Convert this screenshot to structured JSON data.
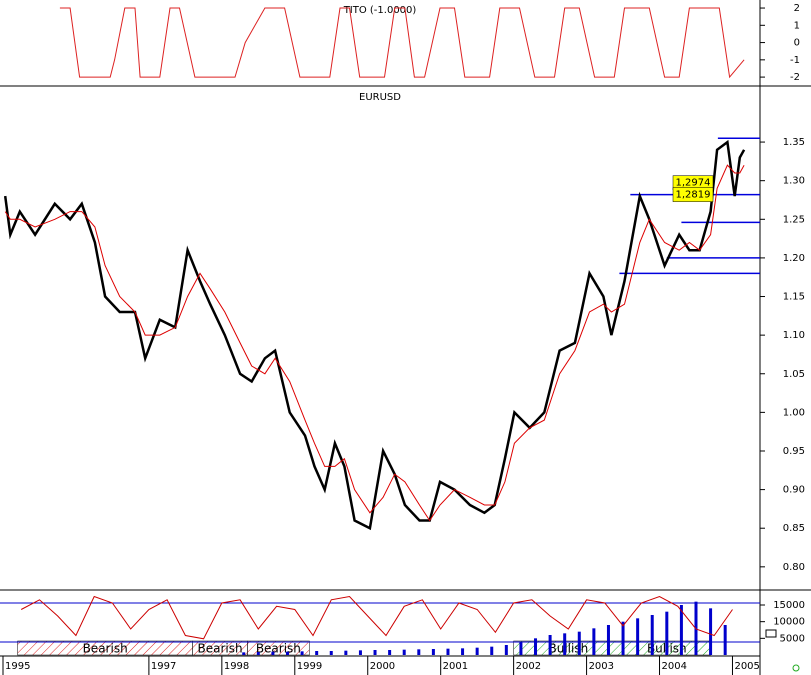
{
  "chart_data": [
    {
      "type": "line",
      "title": "TITO (-1.0000)",
      "xlim": [
        1995,
        2005.35
      ],
      "ylim": [
        -2.4,
        2.35
      ],
      "yticks": [
        -2,
        -1,
        0,
        1,
        2
      ],
      "x": [
        1995.78,
        1995.92,
        1996.05,
        1996.47,
        1996.53,
        1996.67,
        1996.81,
        1996.88,
        1997.15,
        1997.29,
        1997.42,
        1997.63,
        1998.18,
        1998.32,
        1998.59,
        1998.86,
        1999.07,
        1999.48,
        1999.62,
        1999.75,
        1999.89,
        2000.23,
        2000.37,
        2000.51,
        2000.64,
        2000.78,
        2000.99,
        2001.19,
        2001.33,
        2001.67,
        2001.81,
        2002.08,
        2002.29,
        2002.56,
        2002.7,
        2002.9,
        2003.11,
        2003.38,
        2003.52,
        2003.86,
        2004.07,
        2004.27,
        2004.41,
        2004.82,
        2004.96,
        2005.16
      ],
      "series": [
        {
          "color": "#dd2222",
          "values": [
            2,
            2,
            -2,
            -2,
            -1,
            2,
            2,
            -2,
            -2,
            2,
            2,
            -2,
            -2,
            0,
            2,
            2,
            -2,
            -2,
            2,
            2,
            -2,
            -2,
            2,
            2,
            -2,
            -2,
            2,
            2,
            -2,
            -2,
            2,
            2,
            -2,
            -2,
            2,
            2,
            -2,
            -2,
            2,
            2,
            -2,
            -2,
            2,
            2,
            -2,
            -1
          ]
        }
      ]
    },
    {
      "type": "line",
      "title": "EURUSD",
      "xlim": [
        1995,
        2005.35
      ],
      "ylim": [
        0.77,
        1.42
      ],
      "yticks": [
        {
          "value": 0.8,
          "label": "0.80"
        },
        0.85,
        {
          "value": 0.9,
          "label": "0.90"
        },
        0.95,
        {
          "value": 1.0,
          "label": "1.00"
        },
        1.05,
        {
          "value": 1.1,
          "label": "1.10"
        },
        1.15,
        {
          "value": 1.2,
          "label": "1.20"
        },
        1.25,
        {
          "value": 1.3,
          "label": "1.30"
        },
        1.35
      ],
      "x": [
        1995.03,
        1995.1,
        1995.23,
        1995.44,
        1995.71,
        1995.92,
        1996.08,
        1996.26,
        1996.4,
        1996.6,
        1996.81,
        1996.95,
        1997.15,
        1997.36,
        1997.53,
        1997.7,
        1997.84,
        1998.04,
        1998.25,
        1998.41,
        1998.59,
        1998.73,
        1998.93,
        1999.14,
        1999.27,
        1999.41,
        1999.55,
        1999.68,
        1999.82,
        2000.03,
        2000.21,
        2000.37,
        2000.51,
        2000.71,
        2000.85,
        2000.99,
        2001.19,
        2001.4,
        2001.6,
        2001.74,
        2001.88,
        2002.01,
        2002.22,
        2002.42,
        2002.63,
        2002.84,
        2003.04,
        2003.23,
        2003.34,
        2003.52,
        2003.73,
        2003.86,
        2004.07,
        2004.27,
        2004.41,
        2004.55,
        2004.7,
        2004.79,
        2004.93,
        2005.03,
        2005.1,
        2005.16
      ],
      "series": [
        {
          "color": "#000000",
          "values": [
            1.28,
            1.23,
            1.26,
            1.23,
            1.27,
            1.25,
            1.27,
            1.22,
            1.15,
            1.13,
            1.13,
            1.07,
            1.12,
            1.11,
            1.21,
            1.17,
            1.14,
            1.1,
            1.05,
            1.04,
            1.07,
            1.08,
            1.0,
            0.97,
            0.93,
            0.9,
            0.96,
            0.93,
            0.86,
            0.85,
            0.95,
            0.92,
            0.88,
            0.86,
            0.86,
            0.91,
            0.9,
            0.88,
            0.87,
            0.88,
            0.94,
            1.0,
            0.98,
            1.0,
            1.08,
            1.09,
            1.18,
            1.15,
            1.1,
            1.17,
            1.28,
            1.25,
            1.19,
            1.23,
            1.21,
            1.21,
            1.26,
            1.34,
            1.35,
            1.28,
            1.33,
            1.34
          ]
        },
        {
          "color": "#dd0000",
          "values": [
            1.26,
            1.25,
            1.25,
            1.24,
            1.25,
            1.26,
            1.26,
            1.24,
            1.19,
            1.15,
            1.13,
            1.1,
            1.1,
            1.11,
            1.15,
            1.18,
            1.16,
            1.13,
            1.09,
            1.06,
            1.05,
            1.07,
            1.04,
            0.99,
            0.96,
            0.93,
            0.93,
            0.94,
            0.9,
            0.87,
            0.89,
            0.92,
            0.91,
            0.88,
            0.86,
            0.88,
            0.9,
            0.89,
            0.88,
            0.88,
            0.91,
            0.96,
            0.98,
            0.99,
            1.05,
            1.08,
            1.13,
            1.14,
            1.13,
            1.14,
            1.22,
            1.25,
            1.22,
            1.21,
            1.22,
            1.21,
            1.23,
            1.29,
            1.32,
            1.31,
            1.31,
            1.32
          ]
        }
      ],
      "hlines": [
        {
          "value": 1.355,
          "from": 2004.8
        },
        {
          "value": 1.2819,
          "from": 2003.6
        },
        {
          "value": 1.246,
          "from": 2004.3
        },
        {
          "value": 1.2,
          "from": 2004.1
        },
        {
          "value": 1.18,
          "from": 2003.45
        }
      ],
      "hline_color": "#0000dd",
      "annotations": [
        {
          "text": "1,2974",
          "value": 1.2974
        },
        {
          "text": "1,2819",
          "value": 1.2819
        }
      ]
    },
    {
      "type": "bar",
      "xlim": [
        1995,
        2005.35
      ],
      "ylim": [
        0,
        19500
      ],
      "yticks": [
        5000,
        10000,
        15000
      ],
      "y2lim": [
        0,
        100
      ],
      "xticks": [
        1995,
        1997,
        1998,
        1999,
        2000,
        2001,
        2002,
        2003,
        2004,
        2005
      ],
      "x": [
        1998.3,
        1998.5,
        1998.7,
        1998.9,
        1999.1,
        1999.3,
        1999.5,
        1999.7,
        1999.9,
        2000.1,
        2000.3,
        2000.5,
        2000.7,
        2000.9,
        2001.1,
        2001.3,
        2001.5,
        2001.7,
        2001.9,
        2002.1,
        2002.3,
        2002.5,
        2002.7,
        2002.9,
        2003.1,
        2003.3,
        2003.5,
        2003.7,
        2003.9,
        2004.1,
        2004.3,
        2004.5,
        2004.7,
        2004.9
      ],
      "series": [
        {
          "color": "#0000cc",
          "values": [
            800,
            900,
            1000,
            1000,
            1100,
            1200,
            1200,
            1300,
            1400,
            1500,
            1500,
            1600,
            1700,
            1800,
            1900,
            2000,
            2200,
            2500,
            3000,
            4000,
            5000,
            6000,
            6500,
            7000,
            8000,
            9000,
            10000,
            11000,
            12000,
            13000,
            15000,
            16000,
            14000,
            9000
          ]
        },
        {
          "type": "line",
          "axis": "y2",
          "color": "#cc0000",
          "x": [
            1995.25,
            1995.5,
            1995.75,
            1996.0,
            1996.25,
            1996.5,
            1996.75,
            1997.0,
            1997.25,
            1997.5,
            1997.75,
            1998.0,
            1998.25,
            1998.5,
            1998.75,
            1999.0,
            1999.25,
            1999.5,
            1999.75,
            2000.0,
            2000.25,
            2000.5,
            2000.75,
            2001.0,
            2001.25,
            2001.5,
            2001.75,
            2002.0,
            2002.25,
            2002.5,
            2002.75,
            2003.0,
            2003.25,
            2003.5,
            2003.75,
            2004.0,
            2004.25,
            2004.5,
            2004.75,
            2005.0
          ],
          "values": [
            70,
            85,
            60,
            30,
            90,
            80,
            40,
            70,
            85,
            30,
            25,
            80,
            85,
            40,
            75,
            70,
            30,
            85,
            90,
            60,
            30,
            75,
            85,
            40,
            80,
            70,
            35,
            80,
            85,
            60,
            40,
            85,
            80,
            45,
            80,
            90,
            75,
            40,
            30,
            70
          ]
        }
      ],
      "y2_lines": [
        80,
        20
      ],
      "y2_line_color": "#0000cc",
      "regions": [
        {
          "label": "Bearish",
          "start": 1995.2,
          "end": 1997.6,
          "color": "#dd2222"
        },
        {
          "label": "Bearish",
          "start": 1997.6,
          "end": 1998.35,
          "color": "#dd2222"
        },
        {
          "label": "Bearish",
          "start": 1998.35,
          "end": 1999.2,
          "color": "#dd2222"
        },
        {
          "label": "Bullish",
          "start": 2002.0,
          "end": 2003.5,
          "color": "#22aa22"
        },
        {
          "label": "Bullish",
          "start": 2003.5,
          "end": 2004.7,
          "color": "#22aa22"
        }
      ]
    }
  ]
}
